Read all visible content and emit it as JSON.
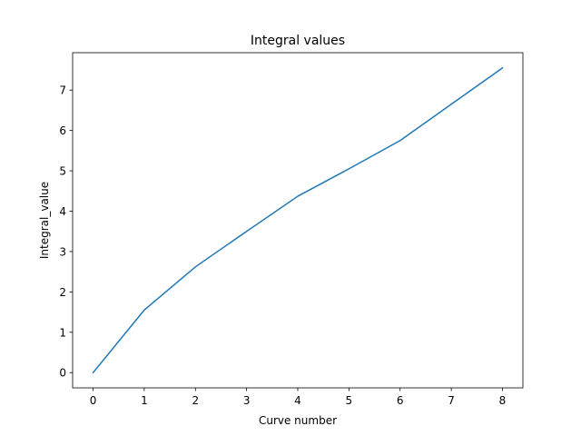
{
  "chart_data": {
    "type": "line",
    "title": "Integral values",
    "xlabel": "Curve number",
    "ylabel": "Integral_value",
    "x": [
      0,
      1,
      2,
      3,
      4,
      5,
      6,
      7,
      8
    ],
    "series": [
      {
        "values": [
          0.0,
          1.55,
          2.62,
          3.5,
          4.37,
          5.05,
          5.75,
          6.65,
          7.55
        ],
        "color": "#1f77b4"
      }
    ],
    "xticks": [
      "0",
      "1",
      "2",
      "3",
      "4",
      "5",
      "6",
      "7",
      "8"
    ],
    "yticks": [
      "0",
      "1",
      "2",
      "3",
      "4",
      "5",
      "6",
      "7"
    ],
    "xlim": [
      -0.4,
      8.4
    ],
    "ylim": [
      -0.3775,
      7.9275
    ],
    "grid": false,
    "legend": "none"
  }
}
